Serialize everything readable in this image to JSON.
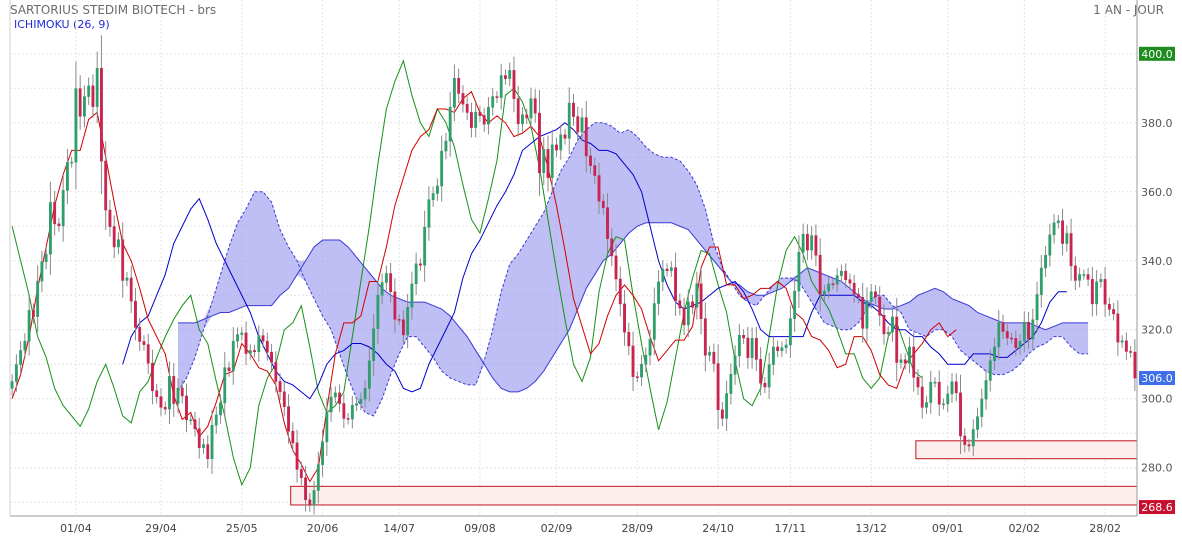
{
  "header": {
    "title": "SARTORIUS STEDIM BIOTECH - brs",
    "period": "1 AN - JOUR",
    "indicator": "ICHIMOKU (26, 9)"
  },
  "chart_data": {
    "type": "candlestick",
    "ylim": [
      266,
      404
    ],
    "yticks": [
      280,
      300,
      320,
      340,
      360,
      380,
      400
    ],
    "xticks": [
      {
        "label": "01/04",
        "i": 15
      },
      {
        "label": "29/04",
        "i": 35
      },
      {
        "label": "25/05",
        "i": 54
      },
      {
        "label": "20/06",
        "i": 73
      },
      {
        "label": "14/07",
        "i": 91
      },
      {
        "label": "09/08",
        "i": 110
      },
      {
        "label": "02/09",
        "i": 128
      },
      {
        "label": "28/09",
        "i": 147
      },
      {
        "label": "24/10",
        "i": 166
      },
      {
        "label": "17/11",
        "i": 183
      },
      {
        "label": "13/12",
        "i": 202
      },
      {
        "label": "09/01",
        "i": 220
      },
      {
        "label": "02/02",
        "i": 238
      },
      {
        "label": "28/02",
        "i": 257
      }
    ],
    "price_flags": [
      {
        "label": "400.0",
        "value": 400.0,
        "color": "#1e8c1e"
      },
      {
        "label": "306.0",
        "value": 306.0,
        "color": "#3f6fe8"
      },
      {
        "label": "268.6",
        "value": 268.6,
        "color": "#c8102e"
      }
    ],
    "zones": [
      {
        "from_i": 66,
        "low": 269.2,
        "high": 274.6
      },
      {
        "from_i": 213,
        "low": 282.6,
        "high": 287.8
      }
    ],
    "colors": {
      "up": "#2f9e6a",
      "down": "#c8244f",
      "tenkan": "#d00000",
      "kijun": "#0000cc",
      "chikou": "#169016",
      "cloud": "#9c9cf0",
      "cloud_edge": "#3a3ad6",
      "zone_fill": "#fdeeee",
      "zone_edge": "#c0141e"
    },
    "series": [
      {
        "name": "OHLC",
        "close": [
          305.0,
          309.9,
          314.0,
          316.7,
          325.6,
          323.8,
          334.1,
          339.7,
          341.9,
          356.9,
          350.7,
          350.1,
          360.4,
          368.5,
          368.6,
          389.9,
          381.9,
          387.6,
          390.7,
          384.7,
          395.8,
          368.9,
          354.7,
          349.9,
          344.0,
          346.1,
          334.3,
          335.0,
          328.3,
          320.7,
          316.6,
          315.7,
          310.3,
          302.3,
          300.6,
          297.5,
          297.0,
          306.5,
          298.6,
          303.1,
          300.8,
          293.9,
          293.9,
          291.3,
          285.8,
          286.7,
          282.6,
          292.3,
          295.3,
          298.8,
          309.0,
          308.1,
          316.7,
          318.6,
          319.1,
          313.1,
          314.0,
          313.6,
          318.3,
          316.7,
          313.5,
          310.6,
          305.0,
          302.0,
          297.7,
          290.6,
          287.2,
          279.5,
          277.1,
          270.7,
          269.2,
          273.4,
          280.9,
          287.5,
          296.1,
          300.5,
          301.7,
          298.6,
          294.3,
          294.1,
          298.1,
          298.6,
          299.9,
          303.0,
          311.0,
          320.3,
          330.0,
          333.7,
          336.3,
          331.0,
          323.0,
          322.9,
          318.5,
          326.5,
          333.3,
          339.1,
          338.7,
          349.7,
          357.7,
          359.5,
          361.7,
          371.8,
          374.7,
          384.5,
          392.9,
          388.5,
          385.4,
          383.0,
          378.6,
          383.1,
          382.1,
          379.6,
          384.5,
          387.6,
          387.3,
          393.7,
          392.8,
          395.2,
          387.0,
          379.7,
          382.3,
          381.4,
          387.0,
          382.8,
          365.5,
          372.3,
          364.1,
          373.6,
          372.1,
          376.5,
          375.5,
          385.7,
          381.8,
          377.3,
          381.5,
          370.4,
          367.6,
          364.7,
          357.3,
          355.4,
          346.4,
          341.4,
          334.7,
          327.5,
          319.3,
          315.3,
          306.4,
          306.3,
          310.0,
          312.6,
          317.2,
          327.6,
          333.9,
          337.6,
          337.1,
          338.0,
          328.4,
          326.3,
          321.4,
          328.1,
          326.5,
          333.3,
          323.2,
          312.6,
          313.5,
          310.2,
          296.8,
          294.3,
          301.5,
          307.1,
          312.4,
          318.4,
          317.6,
          311.9,
          317.5,
          311.4,
          304.5,
          303.4,
          309.9,
          315.0,
          313.9,
          314.8,
          315.6,
          323.2,
          331.2,
          342.5,
          347.7,
          343.1,
          347.3,
          341.6,
          330.2,
          331.2,
          333.3,
          333.2,
          335.7,
          337.0,
          334.5,
          333.5,
          330.3,
          329.4,
          320.4,
          328.4,
          331.0,
          329.5,
          324.2,
          318.8,
          319.3,
          323.7,
          310.5,
          311.3,
          310.3,
          315.0,
          306.2,
          303.4,
          297.5,
          298.9,
          304.8,
          304.8,
          298.4,
          298.5,
          301.4,
          304.9,
          301.7,
          289.2,
          286.7,
          286.3,
          291.1,
          294.8,
          299.9,
          305.3,
          311.0,
          315.0,
          322.1,
          319.5,
          317.6,
          317.5,
          314.8,
          316.7,
          322.2,
          317.3,
          322.9,
          330.2,
          337.9,
          341.6,
          347.5,
          351.0,
          351.6,
          345.0,
          347.9,
          338.5,
          334.3,
          336.0,
          336.0,
          334.6,
          327.5,
          333.9,
          334.6,
          327.4,
          325.9,
          324.6,
          316.4,
          316.8,
          313.7,
          313.5,
          306.0
        ]
      },
      {
        "name": "Tenkan",
        "values": [
          300.0,
          307.0,
          318.0,
          332.0,
          344.0,
          356.0,
          365.0,
          372.0,
          372.0,
          381.0,
          383.0,
          370.0,
          357.0,
          345.0,
          340.0,
          332.0,
          323.0,
          318.0,
          313.0,
          301.0,
          294.0,
          296.0,
          289.0,
          292.0,
          299.0,
          307.0,
          308.0,
          316.0,
          313.0,
          309.0,
          308.0,
          304.0,
          293.0,
          285.0,
          281.0,
          276.0,
          280.0,
          297.0,
          313.0,
          322.0,
          322.0,
          324.0,
          334.0,
          334.0,
          344.0,
          356.0,
          364.0,
          372.0,
          376.0,
          378.0,
          384.0,
          384.0,
          383.0,
          387.0,
          389.0,
          383.0,
          380.0,
          382.0,
          380.0,
          376.0,
          377.0,
          379.0,
          376.0,
          367.0,
          356.0,
          343.0,
          329.0,
          321.0,
          313.0,
          316.0,
          324.0,
          330.0,
          333.0,
          330.0,
          326.0,
          318.0,
          311.0,
          314.0,
          317.0,
          317.0,
          321.0,
          338.0,
          344.0,
          344.0,
          333.0,
          333.0,
          329.0,
          330.0,
          332.0,
          332.0,
          334.0,
          332.0,
          325.0,
          323.0,
          318.0,
          317.0,
          314.0,
          309.0,
          310.0,
          318.0,
          318.0,
          314.0,
          307.0,
          304.0,
          303.0,
          310.0,
          313.0,
          316.0,
          320.0,
          322.0,
          318.0,
          320.0
        ]
      },
      {
        "name": "Kijun",
        "values": [
          310.0,
          318.0,
          322.0,
          324.0,
          330.0,
          336.0,
          345.0,
          350.0,
          355.0,
          358.0,
          352.0,
          345.0,
          340.0,
          335.0,
          330.0,
          325.0,
          318.0,
          313.0,
          308.0,
          305.0,
          304.0,
          302.0,
          300.0,
          304.0,
          310.0,
          313.0,
          314.0,
          316.0,
          316.0,
          315.0,
          313.0,
          310.0,
          308.0,
          303.0,
          302.0,
          303.0,
          310.0,
          315.0,
          320.0,
          325.0,
          335.0,
          342.0,
          346.0,
          351.0,
          356.0,
          360.0,
          365.0,
          372.0,
          374.0,
          376.0,
          377.0,
          378.0,
          380.0,
          378.0,
          375.0,
          374.0,
          372.0,
          372.0,
          371.0,
          368.0,
          365.0,
          360.0,
          350.0,
          340.0,
          333.0,
          328.0,
          326.0,
          327.0,
          328.0,
          330.0,
          332.0,
          333.0,
          334.0,
          331.0,
          326.0,
          320.0,
          318.0,
          318.0,
          318.0,
          318.0,
          318.0,
          325.0,
          330.0,
          330.0,
          330.0,
          330.0,
          330.0,
          328.0,
          327.0,
          325.0,
          322.0,
          320.0,
          320.0,
          318.0,
          318.0,
          315.0,
          313.0,
          310.0,
          310.0,
          310.0,
          313.0,
          313.0,
          313.0,
          312.0,
          312.0,
          314.0,
          316.0,
          318.0,
          322.0,
          328.0,
          331.0,
          331.0
        ]
      },
      {
        "name": "Chikou",
        "values": [
          350.0,
          340.0,
          330.0,
          318.0,
          312.0,
          303.0,
          298.0,
          295.0,
          292.0,
          297.0,
          305.0,
          310.0,
          303.0,
          295.0,
          293.0,
          302.0,
          305.0,
          312.0,
          318.0,
          323.0,
          327.0,
          330.0,
          320.0,
          316.0,
          305.0,
          295.0,
          283.0,
          275.0,
          280.0,
          298.0,
          306.0,
          310.0,
          320.0,
          322.0,
          327.0,
          315.0,
          302.0,
          296.0,
          298.0,
          302.0,
          318.0,
          334.0,
          350.0,
          368.0,
          384.0,
          392.0,
          398.0,
          388.0,
          380.0,
          376.0,
          384.0,
          380.0,
          373.0,
          362.0,
          352.0,
          348.0,
          358.0,
          369.0,
          388.0,
          390.0,
          386.0,
          379.0,
          367.0,
          352.0,
          337.0,
          323.0,
          310.0,
          305.0,
          312.0,
          331.0,
          342.0,
          347.0,
          346.0,
          330.0,
          316.0,
          303.0,
          291.0,
          299.0,
          312.0,
          325.0,
          335.0,
          343.0,
          342.0,
          333.0,
          325.0,
          311.0,
          300.0,
          298.0,
          303.0,
          318.0,
          333.0,
          343.0,
          347.0,
          342.0,
          334.0,
          330.0,
          326.0,
          320.0,
          313.0,
          313.0,
          306.0,
          303.0,
          306.0,
          318.0,
          322.0,
          315.0,
          308.0,
          306.0
        ]
      },
      {
        "name": "Senkou A",
        "values": [
          302.0,
          306.0,
          312.0,
          320.0,
          328.0,
          336.0,
          344.0,
          351.0,
          355.0,
          360.0,
          360.0,
          357.0,
          349.0,
          344.0,
          340.0,
          334.0,
          329.0,
          324.0,
          320.0,
          313.0,
          306.0,
          300.0,
          296.0,
          295.0,
          300.0,
          307.0,
          313.0,
          318.0,
          318.0,
          315.0,
          312.0,
          308.0,
          306.0,
          305.0,
          304.0,
          304.0,
          311.0,
          320.0,
          331.0,
          339.0,
          342.0,
          346.0,
          350.0,
          354.0,
          360.0,
          366.0,
          370.0,
          375.0,
          378.0,
          380.0,
          380.0,
          379.0,
          377.0,
          378.0,
          376.0,
          373.0,
          371.0,
          370.0,
          370.0,
          369.0,
          366.0,
          362.0,
          355.0,
          345.0,
          338.0,
          334.0,
          330.0,
          328.0,
          327.0,
          330.0,
          333.0,
          335.0,
          335.0,
          334.0,
          330.0,
          326.0,
          322.0,
          321.0,
          320.0,
          320.0,
          322.0,
          326.0,
          330.0,
          330.0,
          327.0,
          325.0,
          320.0,
          319.0,
          318.0,
          320.0,
          320.0,
          318.0,
          314.0,
          312.0,
          310.0,
          308.0,
          307.0,
          307.0,
          308.0,
          310.0,
          313.0,
          315.0,
          316.0,
          318.0,
          318.0,
          315.0,
          313.0,
          313.0
        ]
      },
      {
        "name": "Senkou B",
        "values": [
          322.0,
          322.0,
          322.0,
          323.0,
          324.0,
          325.0,
          325.0,
          326.0,
          327.0,
          327.0,
          327.0,
          327.0,
          330.0,
          332.0,
          336.0,
          340.0,
          344.0,
          346.0,
          346.0,
          346.0,
          344.0,
          341.0,
          338.0,
          335.0,
          332.0,
          330.0,
          329.0,
          328.0,
          328.0,
          328.0,
          327.0,
          326.0,
          324.0,
          321.0,
          318.0,
          314.0,
          310.0,
          306.0,
          303.0,
          302.0,
          302.0,
          303.0,
          305.0,
          308.0,
          312.0,
          316.0,
          320.0,
          326.0,
          332.0,
          336.0,
          340.0,
          342.0,
          345.0,
          348.0,
          350.0,
          351.0,
          351.0,
          351.0,
          351.0,
          350.0,
          349.0,
          346.0,
          343.0,
          340.0,
          337.0,
          334.0,
          333.0,
          331.0,
          330.0,
          330.0,
          331.0,
          332.0,
          334.0,
          336.0,
          338.0,
          337.0,
          336.0,
          335.0,
          334.0,
          332.0,
          330.0,
          328.0,
          327.0,
          326.0,
          326.0,
          327.0,
          328.0,
          330.0,
          331.0,
          332.0,
          331.0,
          329.0,
          328.0,
          327.0,
          325.0,
          324.0,
          323.0,
          322.0,
          322.0,
          322.0,
          322.0,
          321.0,
          320.0,
          321.0,
          322.0,
          322.0,
          322.0,
          322.0
        ]
      }
    ]
  }
}
